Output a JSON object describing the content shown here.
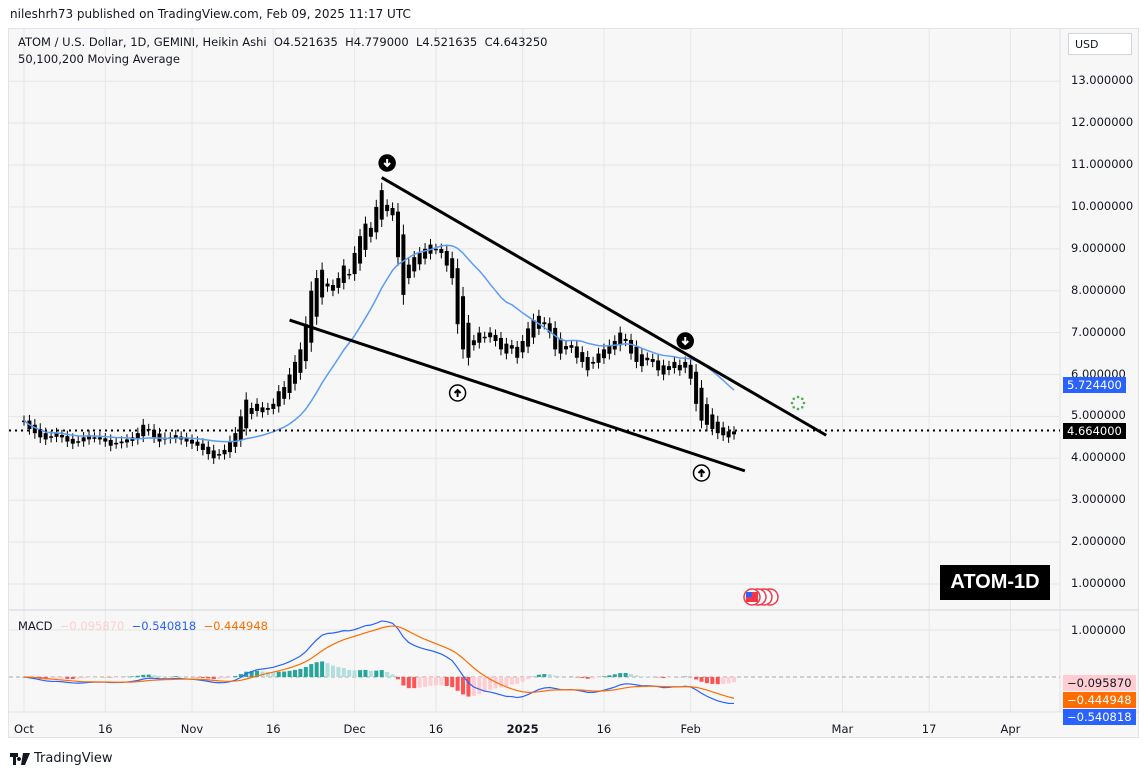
{
  "published": "nileshrh73 published on TradingView.com, Feb 09, 2025 11:17 UTC",
  "legend": {
    "symbol": "ATOM / U.S. Dollar, 1D, GEMINI, Heikin Ashi",
    "open": "O4.521635",
    "high": "H4.779000",
    "low": "L4.521635",
    "close": "C4.643250",
    "indicator": "50,100,200 Moving Average"
  },
  "macd_legend": {
    "label": "MACD",
    "hist": "−0.095870",
    "macd": "−0.540818",
    "signal": "−0.444948"
  },
  "currency": "USD",
  "badge": "ATOM-1D",
  "logo": "TradingView",
  "price_tags": {
    "ma": "5.724400",
    "last": "4.664000",
    "macd_hist": "−0.095870",
    "macd_signal": "−0.444948",
    "macd_line": "−0.540818"
  },
  "colors": {
    "ma": "#5b9cf6",
    "macd": "#2962ff",
    "signal": "#ff6d00",
    "hist_up_strong": "#26a69a",
    "hist_up_weak": "#b2dfdb",
    "hist_down_strong": "#ff5252",
    "hist_down_weak": "#ffcdd2",
    "candle": "#000000"
  },
  "chart_data": {
    "type": "candlestick",
    "style": "Heikin Ashi",
    "start_date": "2024-10-01",
    "close": [
      4.9,
      4.7,
      4.6,
      4.5,
      4.45,
      4.5,
      4.6,
      4.5,
      4.4,
      4.35,
      4.4,
      4.5,
      4.55,
      4.5,
      4.45,
      4.4,
      4.3,
      4.35,
      4.4,
      4.45,
      4.5,
      4.6,
      4.8,
      4.7,
      4.5,
      4.4,
      4.45,
      4.5,
      4.55,
      4.45,
      4.4,
      4.35,
      4.3,
      4.2,
      4.1,
      4.0,
      4.1,
      4.2,
      4.4,
      4.6,
      5.0,
      5.4,
      5.2,
      5.3,
      5.1,
      5.2,
      5.3,
      5.6,
      5.7,
      6.0,
      6.3,
      6.6,
      7.2,
      8.0,
      8.3,
      8.5,
      8.1,
      8.0,
      8.3,
      8.6,
      8.4,
      8.9,
      9.3,
      9.6,
      9.5,
      10.0,
      10.4,
      9.9,
      9.8,
      8.8,
      7.9,
      8.3,
      8.8,
      8.9,
      9.0,
      9.1,
      9.0,
      8.9,
      8.6,
      8.3,
      7.2,
      6.6,
      6.4,
      6.7,
      7.0,
      6.9,
      7.0,
      6.8,
      6.6,
      6.5,
      6.7,
      6.4,
      6.8,
      7.1,
      7.3,
      7.4,
      7.2,
      7.0,
      6.6,
      6.5,
      6.6,
      6.7,
      6.4,
      6.3,
      6.1,
      6.3,
      6.5,
      6.6,
      6.7,
      6.8,
      7.0,
      6.8,
      6.5,
      6.3,
      6.2,
      6.4,
      6.3,
      6.1,
      6.0,
      6.2,
      6.3,
      6.1,
      6.3,
      5.9,
      5.3,
      4.9,
      4.8,
      4.7,
      4.6,
      4.55,
      4.5,
      4.64
    ],
    "price_axis": {
      "ticks": [
        "13.000000",
        "12.000000",
        "11.000000",
        "10.000000",
        "9.000000",
        "8.000000",
        "7.000000",
        "6.000000",
        "5.000000",
        "4.000000",
        "3.000000",
        "2.000000",
        "1.000000"
      ],
      "range": [
        0.5,
        13.6
      ]
    },
    "macd_axis": {
      "ticks": [
        "1.000000"
      ],
      "zero": "0.000000"
    },
    "time_axis": {
      "ticks": [
        {
          "label": "Oct",
          "date": "2024-10-01"
        },
        {
          "label": "16",
          "date": "2024-10-16"
        },
        {
          "label": "Nov",
          "date": "2024-11-01"
        },
        {
          "label": "16",
          "date": "2024-11-16"
        },
        {
          "label": "Dec",
          "date": "2024-12-01"
        },
        {
          "label": "16",
          "date": "2024-12-16"
        },
        {
          "label": "2025",
          "date": "2025-01-01"
        },
        {
          "label": "16",
          "date": "2025-01-16"
        },
        {
          "label": "Feb",
          "date": "2025-02-01"
        },
        {
          "label": "Mar",
          "date": "2025-03-01"
        },
        {
          "label": "17",
          "date": "2025-03-17"
        },
        {
          "label": "Apr",
          "date": "2025-04-01"
        }
      ]
    },
    "trendlines": [
      {
        "name": "upper",
        "from": {
          "date": "2024-12-06",
          "price": 10.7
        },
        "to": {
          "date": "2025-02-26",
          "price": 4.55
        }
      },
      {
        "name": "lower",
        "from": {
          "date": "2024-11-19",
          "price": 7.3
        },
        "to": {
          "date": "2025-02-11",
          "price": 3.7
        }
      }
    ],
    "markers": [
      {
        "type": "arrow-down",
        "date": "2024-12-07"
      },
      {
        "type": "arrow-up",
        "date": "2024-12-20"
      },
      {
        "type": "arrow-down",
        "date": "2025-01-31"
      },
      {
        "type": "arrow-up",
        "date": "2025-02-03"
      }
    ],
    "last_price_line": 4.664
  }
}
